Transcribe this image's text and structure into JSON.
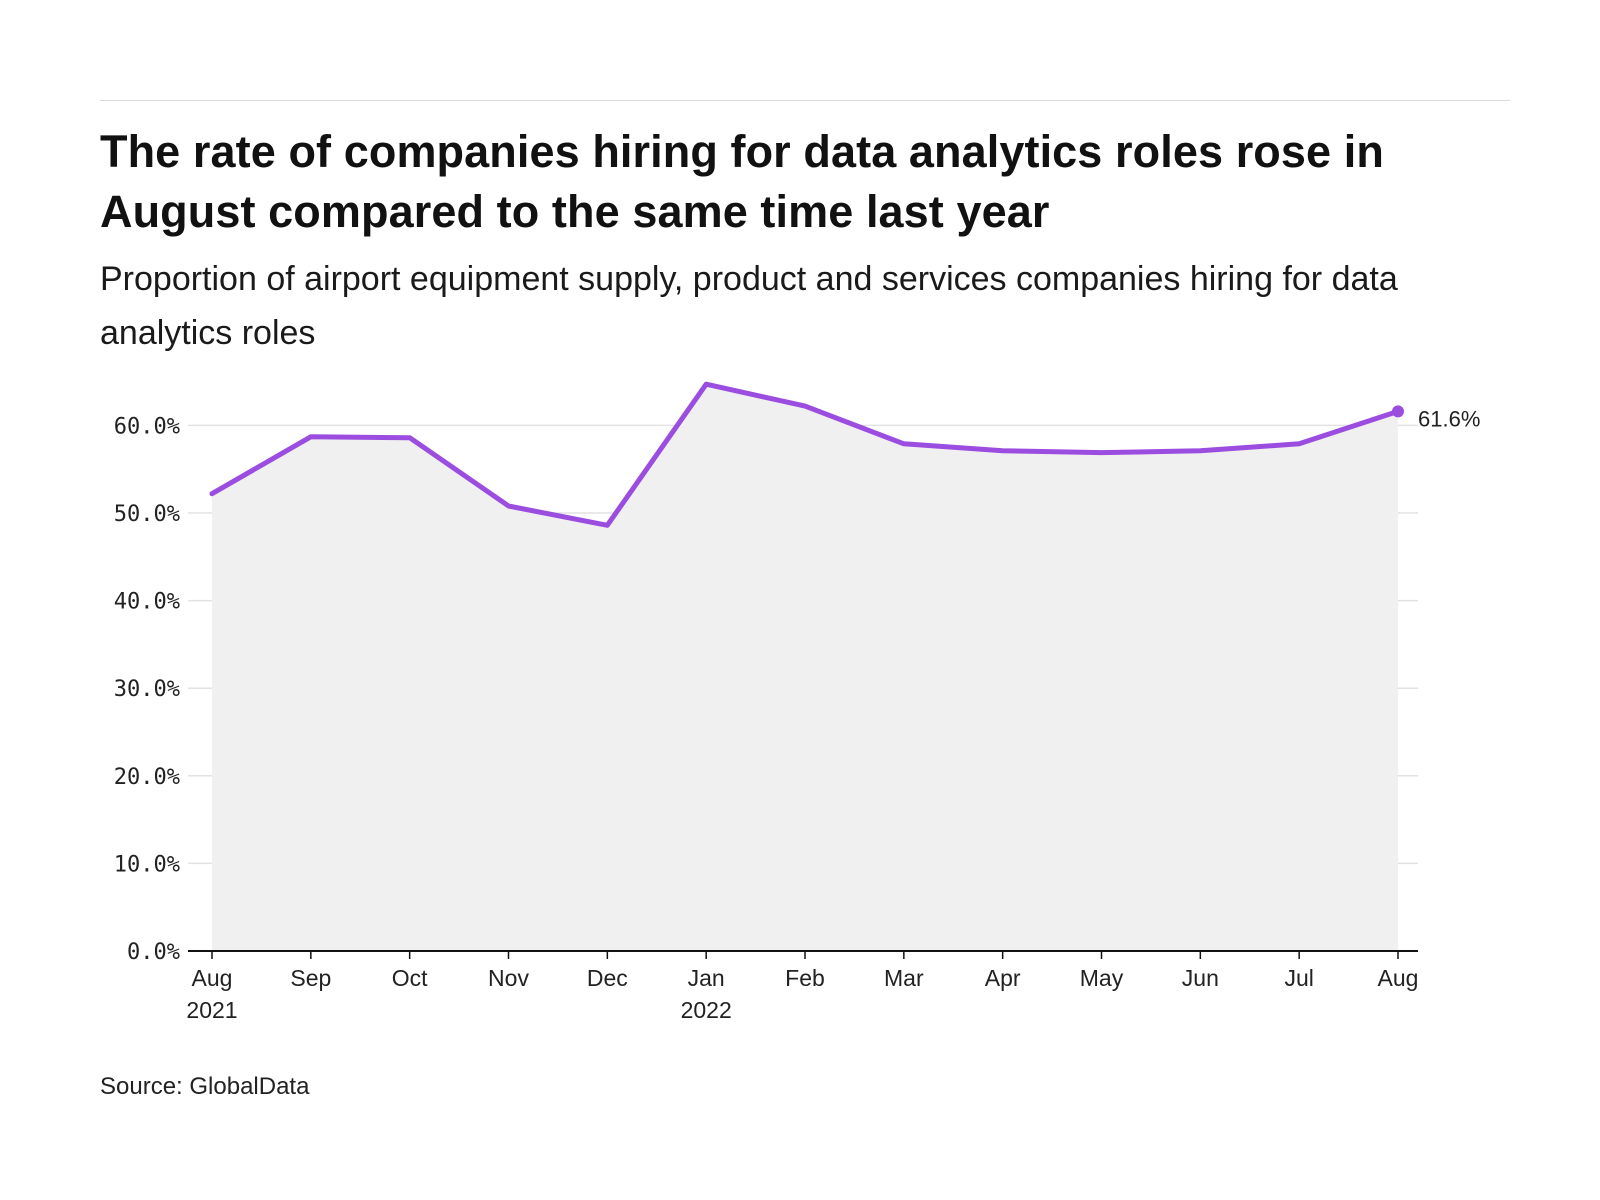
{
  "header": {
    "title": "The rate of companies hiring for data analytics roles rose in August compared to the same time last year",
    "subtitle": "Proportion of airport equipment supply, product and services companies hiring for data analytics roles"
  },
  "footer": {
    "source": "Source: GlobalData"
  },
  "colors": {
    "line": "#9b4de0",
    "area": "#f0f0f0",
    "grid": "#e2e2e2",
    "axis": "#111111"
  },
  "chart_data": {
    "type": "area",
    "title": "The rate of companies hiring for data analytics roles rose in August compared to the same time last year",
    "subtitle": "Proportion of airport equipment supply, product and services companies hiring for data analytics roles",
    "xlabel": "",
    "ylabel": "",
    "categories": [
      "Aug 2021",
      "Sep 2021",
      "Oct 2021",
      "Nov 2021",
      "Dec 2021",
      "Jan 2022",
      "Feb 2022",
      "Mar 2022",
      "Apr 2022",
      "May 2022",
      "Jun 2022",
      "Jul 2022",
      "Aug 2022"
    ],
    "x_tick_labels": [
      [
        "Aug",
        "2021"
      ],
      [
        "Sep"
      ],
      [
        "Oct"
      ],
      [
        "Nov"
      ],
      [
        "Dec"
      ],
      [
        "Jan",
        "2022"
      ],
      [
        "Feb"
      ],
      [
        "Mar"
      ],
      [
        "Apr"
      ],
      [
        "May"
      ],
      [
        "Jun"
      ],
      [
        "Jul"
      ],
      [
        "Aug"
      ]
    ],
    "values": [
      52.2,
      58.7,
      58.6,
      50.8,
      48.6,
      64.7,
      62.2,
      57.9,
      57.1,
      56.9,
      57.1,
      57.9,
      61.6
    ],
    "unit": "%",
    "ylim": [
      0,
      65
    ],
    "y_ticks": [
      0,
      10,
      20,
      30,
      40,
      50,
      60
    ],
    "y_tick_labels": [
      "0.0%",
      "10.0%",
      "20.0%",
      "30.0%",
      "40.0%",
      "50.0%",
      "60.0%"
    ],
    "grid": true,
    "last_value_label": "61.6%",
    "legend": "none"
  }
}
